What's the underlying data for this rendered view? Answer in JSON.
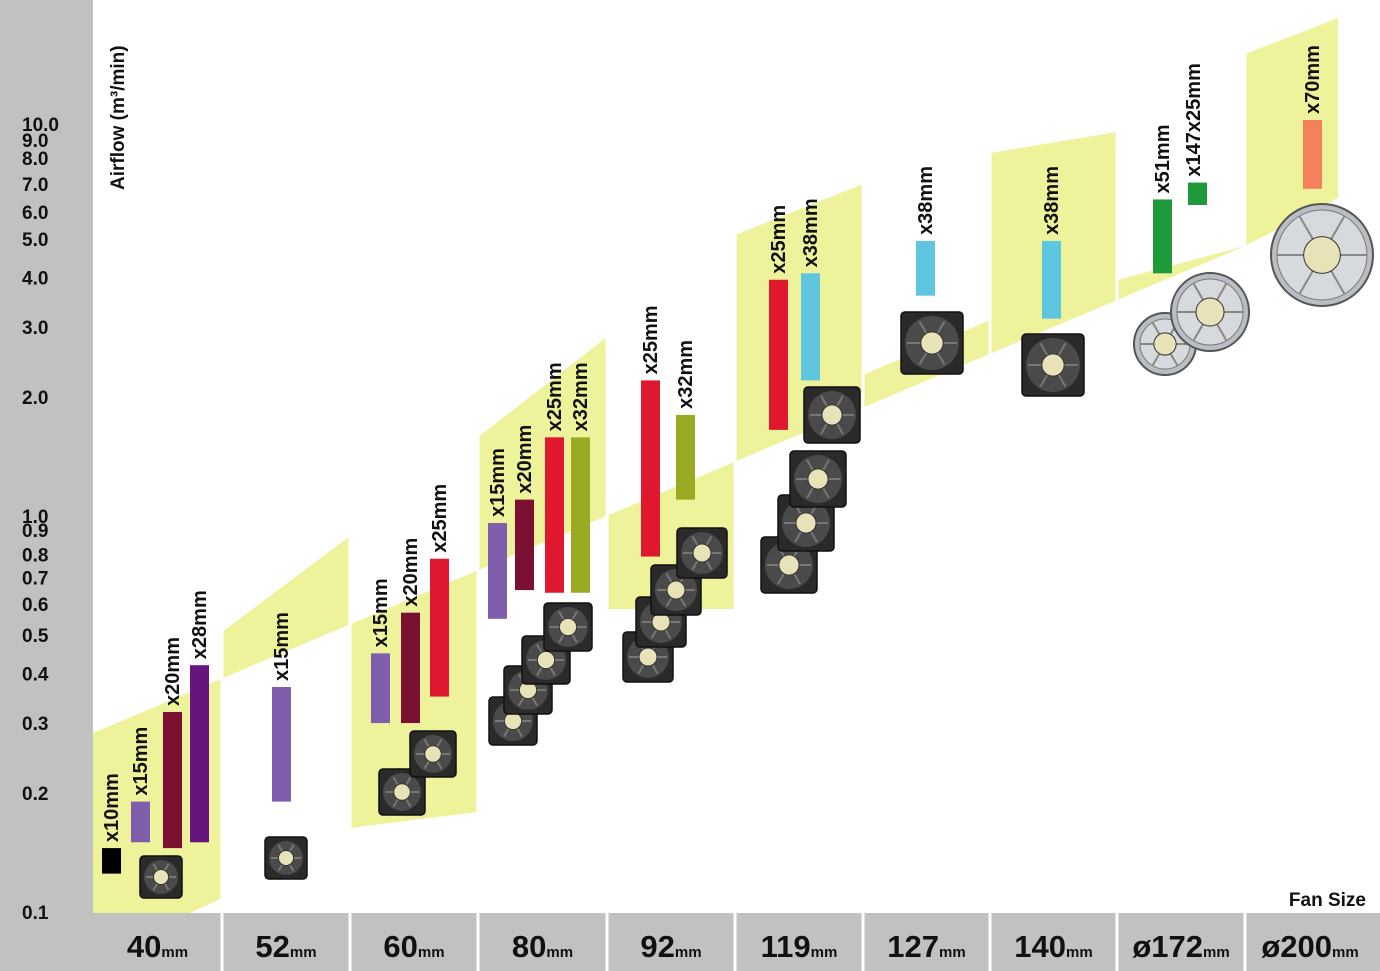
{
  "chart_data": {
    "type": "bar",
    "ylabel": "Airflow (m³/min)",
    "xlabel": "Fan Size",
    "y_scale": "log",
    "ylim": [
      0.1,
      10.0
    ],
    "y_ticks": [
      "0.1",
      "0.2",
      "0.3",
      "0.4",
      "0.5",
      "0.6",
      "0.7",
      "0.8",
      "0.9",
      "1.0",
      "2.0",
      "3.0",
      "4.0",
      "5.0",
      "6.0",
      "7.0",
      "8.0",
      "9.0",
      "10.0"
    ],
    "categories": [
      {
        "num": "40",
        "unit": "mm"
      },
      {
        "num": "52",
        "unit": "mm"
      },
      {
        "num": "60",
        "unit": "mm"
      },
      {
        "num": "80",
        "unit": "mm"
      },
      {
        "num": "92",
        "unit": "mm"
      },
      {
        "num": "119",
        "unit": "mm"
      },
      {
        "num": "127",
        "unit": "mm"
      },
      {
        "num": "140",
        "unit": "mm"
      },
      {
        "num": "ø172",
        "unit": "mm"
      },
      {
        "num": "ø200",
        "unit": "mm"
      }
    ],
    "bars": [
      {
        "category": "40mm",
        "label": "x10mm",
        "min": 0.125,
        "max": 0.145,
        "color": "#000000"
      },
      {
        "category": "40mm",
        "label": "x15mm",
        "min": 0.15,
        "max": 0.19,
        "color": "#7f5fad"
      },
      {
        "category": "40mm",
        "label": "x20mm",
        "min": 0.145,
        "max": 0.32,
        "color": "#7a1133"
      },
      {
        "category": "40mm",
        "label": "x28mm",
        "min": 0.15,
        "max": 0.42,
        "color": "#66157f"
      },
      {
        "category": "52mm",
        "label": "x15mm",
        "min": 0.19,
        "max": 0.37,
        "color": "#7f5fad"
      },
      {
        "category": "60mm",
        "label": "x15mm",
        "min": 0.3,
        "max": 0.45,
        "color": "#7f5fad"
      },
      {
        "category": "60mm",
        "label": "x20mm",
        "min": 0.3,
        "max": 0.57,
        "color": "#7a1133"
      },
      {
        "category": "60mm",
        "label": "x25mm",
        "min": 0.35,
        "max": 0.78,
        "color": "#e0182f"
      },
      {
        "category": "80mm",
        "label": "x15mm",
        "min": 0.55,
        "max": 0.96,
        "color": "#7f5fad"
      },
      {
        "category": "80mm",
        "label": "x20mm",
        "min": 0.65,
        "max": 1.1,
        "color": "#7a1133"
      },
      {
        "category": "80mm",
        "label": "x25mm",
        "min": 0.64,
        "max": 1.58,
        "color": "#e0182f"
      },
      {
        "category": "80mm",
        "label": "x32mm",
        "min": 0.64,
        "max": 1.58,
        "color": "#9aaa22"
      },
      {
        "category": "92mm",
        "label": "x25mm",
        "min": 0.79,
        "max": 2.2,
        "color": "#e0182f"
      },
      {
        "category": "92mm",
        "label": "x32mm",
        "min": 1.1,
        "max": 1.8,
        "color": "#9aaa22"
      },
      {
        "category": "119mm",
        "label": "x25mm",
        "min": 1.65,
        "max": 3.95,
        "color": "#e0182f"
      },
      {
        "category": "119mm",
        "label": "x38mm",
        "min": 2.2,
        "max": 4.1,
        "color": "#5ec6de"
      },
      {
        "category": "127mm",
        "label": "x38mm",
        "min": 3.6,
        "max": 4.95,
        "color": "#5ec6de"
      },
      {
        "category": "140mm",
        "label": "x38mm",
        "min": 3.15,
        "max": 4.95,
        "color": "#5ec6de"
      },
      {
        "category": "ø172mm",
        "label": "x51mm",
        "min": 4.1,
        "max": 6.3,
        "color": "#1f9a3a"
      },
      {
        "category": "ø172mm",
        "label": "x147x25mm",
        "min": 6.1,
        "max": 6.95,
        "color": "#1f9a3a"
      },
      {
        "category": "ø200mm",
        "label": "x70mm",
        "min": 6.7,
        "max": 10.0,
        "color": "#f5805c"
      }
    ],
    "grid": false,
    "legend": "none"
  },
  "colors": {
    "axis_panel": "#c1c1c1",
    "band_fill": "#eef39b",
    "fan_dark": "#2a2a2a"
  }
}
